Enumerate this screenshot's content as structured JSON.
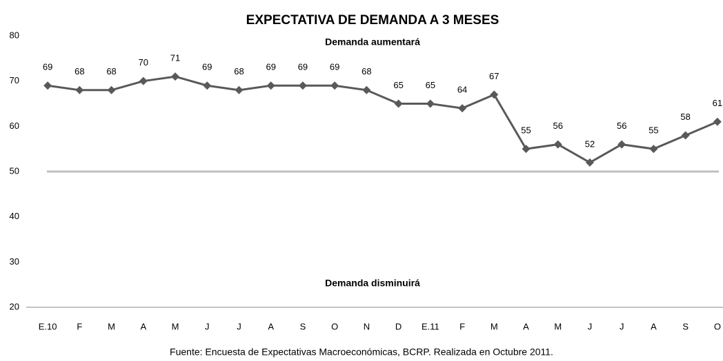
{
  "chart_data": {
    "type": "line",
    "title": "EXPECTATIVA DE DEMANDA A 3 MESES",
    "annotations": [
      "Demanda aumentará",
      "Demanda disminuirá"
    ],
    "source": "Fuente: Encuesta de Expectativas Macroeconómicas, BCRP. Realizada en Octubre 2011.",
    "categories": [
      "E.10",
      "F",
      "M",
      "A",
      "M",
      "J",
      "J",
      "A",
      "S",
      "O",
      "N",
      "D",
      "E.11",
      "F",
      "M",
      "A",
      "M",
      "J",
      "J",
      "A",
      "S",
      "O"
    ],
    "series": [
      {
        "color": "#595959",
        "values": [
          69,
          68,
          68,
          70,
          71,
          69,
          68,
          69,
          69,
          69,
          68,
          65,
          65,
          64,
          67,
          55,
          56,
          52,
          56,
          55,
          58,
          61
        ]
      }
    ],
    "reference_line": {
      "value": 50,
      "color": "#bfbfbf"
    },
    "ylim": [
      20,
      80
    ],
    "yticks": [
      20,
      30,
      40,
      50,
      60,
      70,
      80
    ],
    "grid": false
  }
}
